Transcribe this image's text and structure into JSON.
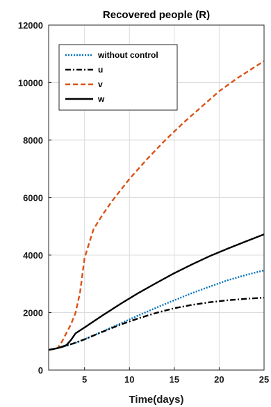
{
  "chart_data": {
    "type": "line",
    "title": "Recovered people (R)",
    "xlabel": "Time(days)",
    "ylabel": "",
    "xlim": [
      1,
      25
    ],
    "ylim": [
      0,
      12000
    ],
    "xticks": [
      5,
      10,
      15,
      20,
      25
    ],
    "yticks": [
      0,
      2000,
      4000,
      6000,
      8000,
      10000,
      12000
    ],
    "grid": true,
    "legend_position": "top-left",
    "series": [
      {
        "name": "without control",
        "color": "#0072BD",
        "dash": "dotted",
        "x": [
          1,
          2,
          3,
          4,
          5,
          7,
          9,
          11,
          13,
          15,
          17,
          19,
          21,
          23,
          25
        ],
        "y": [
          700,
          760,
          850,
          950,
          1070,
          1340,
          1620,
          1900,
          2170,
          2430,
          2680,
          2910,
          3130,
          3310,
          3470
        ]
      },
      {
        "name": "u",
        "color": "#000000",
        "dash": "dashdot",
        "x": [
          1,
          2,
          3,
          4,
          5,
          7,
          9,
          11,
          13,
          15,
          17,
          19,
          21,
          23,
          25
        ],
        "y": [
          700,
          760,
          850,
          950,
          1070,
          1330,
          1580,
          1800,
          1990,
          2150,
          2270,
          2360,
          2430,
          2480,
          2520
        ]
      },
      {
        "name": "v",
        "color": "#D95319",
        "dash": "dashed",
        "x": [
          1,
          2,
          2.5,
          3,
          3.5,
          4,
          4.5,
          5,
          5.5,
          6,
          7,
          8,
          9,
          10,
          12,
          14,
          16,
          18,
          20,
          22,
          24,
          25
        ],
        "y": [
          700,
          760,
          1000,
          1300,
          1600,
          2000,
          2700,
          3900,
          4400,
          4900,
          5400,
          5850,
          6250,
          6650,
          7350,
          8000,
          8600,
          9150,
          9700,
          10150,
          10550,
          10750
        ]
      },
      {
        "name": "w",
        "color": "#000000",
        "dash": "solid",
        "x": [
          1,
          2,
          3,
          3.5,
          4,
          5,
          7,
          9,
          11,
          13,
          15,
          17,
          19,
          21,
          23,
          25
        ],
        "y": [
          700,
          760,
          870,
          1050,
          1280,
          1480,
          1900,
          2300,
          2680,
          3030,
          3370,
          3680,
          3970,
          4230,
          4480,
          4720
        ]
      }
    ]
  }
}
